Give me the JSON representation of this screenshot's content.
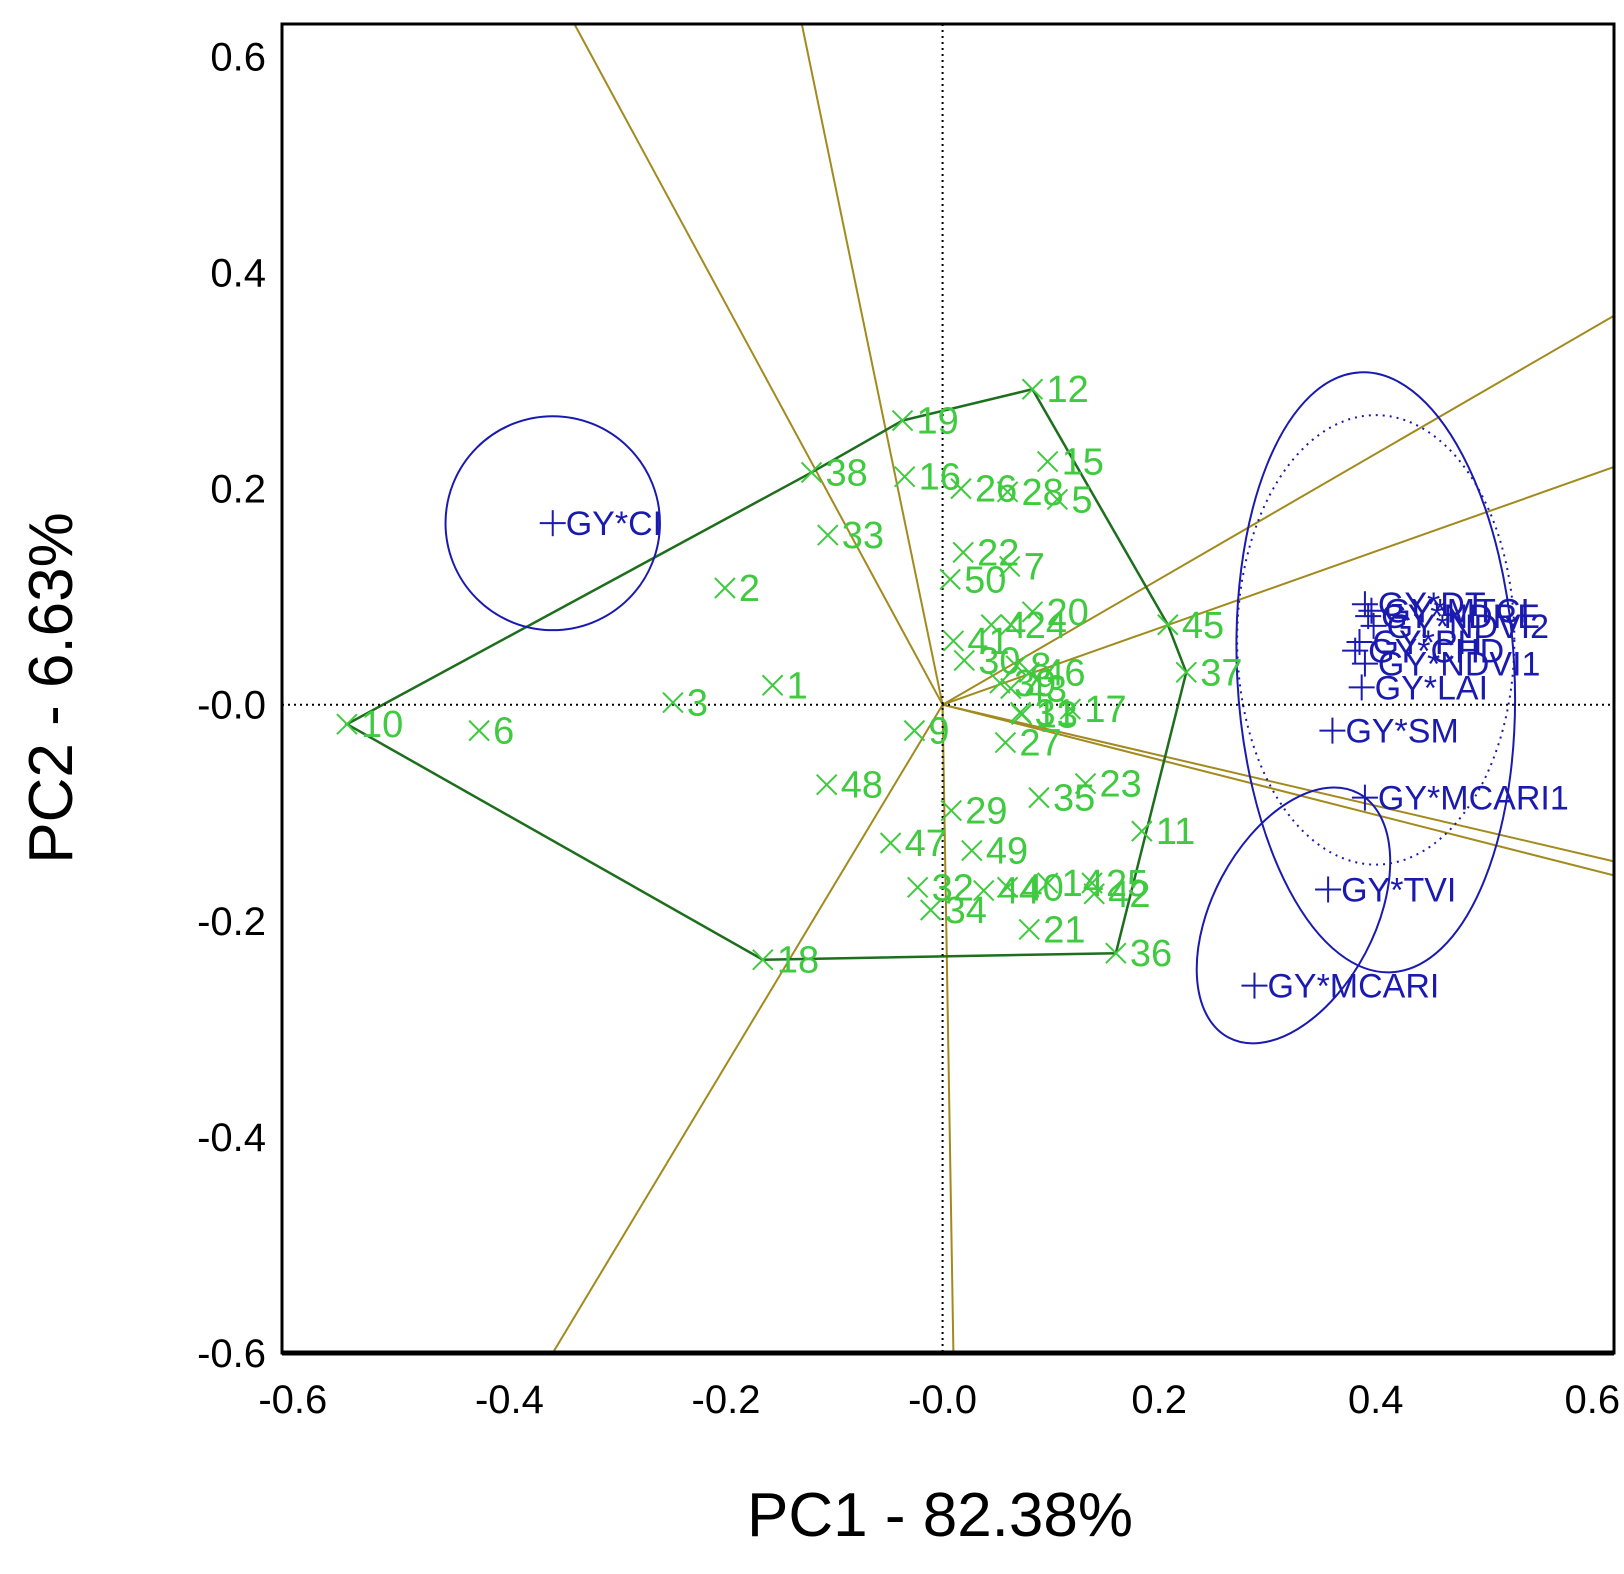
{
  "chart_data": {
    "type": "scatter",
    "title": "",
    "xlabel": "PC1 - 82.38%",
    "ylabel": "PC2 - 6.63%",
    "xlim": [
      -0.61,
      0.62
    ],
    "ylim": [
      -0.6,
      0.63
    ],
    "xticks": [
      -0.6,
      -0.4,
      -0.2,
      0.0,
      0.2,
      0.4,
      0.6
    ],
    "xtick_labels": [
      "-0.6",
      "-0.4",
      "-0.2",
      "-0.0",
      "0.2",
      "0.4",
      "0.6"
    ],
    "yticks": [
      0.6,
      0.4,
      0.2,
      0.0,
      -0.2,
      -0.4,
      -0.6
    ],
    "ytick_labels": [
      "0.6",
      "0.4",
      "0.2",
      "-0.0",
      "-0.2",
      "-0.4",
      "-0.6"
    ],
    "grid": false,
    "legend": "none",
    "reference_lines": {
      "x": 0.0,
      "y": 0.0,
      "style": "dotted"
    },
    "colors": {
      "genotype": "#3fca3f",
      "environment": "#1a1ab0",
      "polygon": "#1d6e1d",
      "sector_rays": "#a28a1e",
      "frame": "#000000"
    },
    "series": [
      {
        "name": "genotypes",
        "marker": "x",
        "points": [
          {
            "label": "1",
            "x": -0.157,
            "y": 0.018
          },
          {
            "label": "2",
            "x": -0.201,
            "y": 0.108
          },
          {
            "label": "3",
            "x": -0.249,
            "y": 0.002
          },
          {
            "label": "4",
            "x": 0.045,
            "y": 0.074
          },
          {
            "label": "5",
            "x": 0.106,
            "y": 0.19
          },
          {
            "label": "6",
            "x": -0.428,
            "y": -0.024
          },
          {
            "label": "7",
            "x": 0.062,
            "y": 0.128
          },
          {
            "label": "8",
            "x": 0.068,
            "y": 0.036
          },
          {
            "label": "9",
            "x": -0.026,
            "y": -0.024
          },
          {
            "label": "10",
            "x": -0.55,
            "y": -0.018
          },
          {
            "label": "11",
            "x": 0.184,
            "y": -0.117
          },
          {
            "label": "12",
            "x": 0.083,
            "y": 0.292
          },
          {
            "label": "13",
            "x": 0.073,
            "y": -0.009
          },
          {
            "label": "14",
            "x": 0.097,
            "y": -0.165
          },
          {
            "label": "15",
            "x": 0.097,
            "y": 0.225
          },
          {
            "label": "16",
            "x": -0.035,
            "y": 0.211
          },
          {
            "label": "17",
            "x": 0.118,
            "y": -0.004
          },
          {
            "label": "18",
            "x": -0.166,
            "y": -0.236
          },
          {
            "label": "19",
            "x": -0.037,
            "y": 0.263
          },
          {
            "label": "20",
            "x": 0.083,
            "y": 0.086
          },
          {
            "label": "21",
            "x": 0.08,
            "y": -0.208
          },
          {
            "label": "22",
            "x": 0.019,
            "y": 0.141
          },
          {
            "label": "23",
            "x": 0.132,
            "y": -0.073
          },
          {
            "label": "24",
            "x": 0.063,
            "y": 0.074
          },
          {
            "label": "25",
            "x": 0.138,
            "y": -0.165
          },
          {
            "label": "26",
            "x": 0.017,
            "y": 0.2
          },
          {
            "label": "27",
            "x": 0.058,
            "y": -0.035
          },
          {
            "label": "28",
            "x": 0.06,
            "y": 0.197
          },
          {
            "label": "29",
            "x": 0.008,
            "y": -0.098
          },
          {
            "label": "30",
            "x": 0.02,
            "y": 0.041
          },
          {
            "label": "31",
            "x": 0.072,
            "y": -0.007
          },
          {
            "label": "32",
            "x": -0.023,
            "y": -0.169
          },
          {
            "label": "33",
            "x": -0.106,
            "y": 0.157
          },
          {
            "label": "34",
            "x": -0.011,
            "y": -0.19
          },
          {
            "label": "35",
            "x": 0.089,
            "y": -0.086
          },
          {
            "label": "36",
            "x": 0.16,
            "y": -0.23
          },
          {
            "label": "37",
            "x": 0.225,
            "y": 0.03
          },
          {
            "label": "38",
            "x": -0.121,
            "y": 0.215
          },
          {
            "label": "39",
            "x": 0.053,
            "y": 0.02
          },
          {
            "label": "40",
            "x": 0.06,
            "y": -0.169
          },
          {
            "label": "41",
            "x": 0.01,
            "y": 0.059
          },
          {
            "label": "42",
            "x": 0.14,
            "y": -0.175
          },
          {
            "label": "43",
            "x": 0.063,
            "y": 0.015
          },
          {
            "label": "44",
            "x": 0.038,
            "y": -0.172
          },
          {
            "label": "45",
            "x": 0.208,
            "y": 0.074
          },
          {
            "label": "46",
            "x": 0.08,
            "y": 0.03
          },
          {
            "label": "47",
            "x": -0.048,
            "y": -0.128
          },
          {
            "label": "48",
            "x": -0.107,
            "y": -0.074
          },
          {
            "label": "49",
            "x": 0.027,
            "y": -0.135
          },
          {
            "label": "50",
            "x": 0.007,
            "y": 0.116
          }
        ]
      },
      {
        "name": "environments",
        "marker": "+",
        "points": [
          {
            "label": "GY*CI",
            "x": -0.36,
            "y": 0.168
          },
          {
            "label": "GY*DT",
            "x": 0.39,
            "y": 0.093
          },
          {
            "label": "GY*NDRE",
            "x": 0.393,
            "y": 0.082
          },
          {
            "label": "GY*MTCI",
            "x": 0.396,
            "y": 0.087
          },
          {
            "label": "GY*NDVI2",
            "x": 0.398,
            "y": 0.073
          },
          {
            "label": "GY*PH",
            "x": 0.385,
            "y": 0.058
          },
          {
            "label": "GY*CHD",
            "x": 0.381,
            "y": 0.05
          },
          {
            "label": "GY*NDVI1",
            "x": 0.39,
            "y": 0.038
          },
          {
            "label": "GY*LAI",
            "x": 0.387,
            "y": 0.016
          },
          {
            "label": "GY*SM",
            "x": 0.36,
            "y": -0.024
          },
          {
            "label": "GY*MCARI1",
            "x": 0.39,
            "y": -0.086
          },
          {
            "label": "GY*TVI",
            "x": 0.356,
            "y": -0.171
          },
          {
            "label": "GY*MCARI",
            "x": 0.288,
            "y": -0.26
          }
        ]
      }
    ],
    "polygon_vertices": [
      "10",
      "18",
      "36",
      "37",
      "45",
      "12",
      "19",
      "38"
    ],
    "sector_ray_endpoints": [
      {
        "x": -0.34,
        "y": 0.63
      },
      {
        "x": -0.13,
        "y": 0.63
      },
      {
        "x": 0.62,
        "y": 0.36
      },
      {
        "x": 0.62,
        "y": 0.22
      },
      {
        "x": 0.62,
        "y": -0.145
      },
      {
        "x": 0.62,
        "y": -0.158
      },
      {
        "x": 0.01,
        "y": -0.6
      },
      {
        "x": -0.36,
        "y": -0.6
      }
    ],
    "circles": [
      {
        "center": "GY*CI",
        "rx": 0.099,
        "ry": 0.099,
        "style": "solid"
      },
      {
        "cx": 0.4,
        "cy": 0.03,
        "rx": 0.128,
        "ry": 0.278,
        "rotate": -3,
        "style": "solid"
      },
      {
        "cx": 0.4,
        "cy": 0.06,
        "rx": 0.128,
        "ry": 0.208,
        "rotate": 0,
        "style": "dotted"
      },
      {
        "cx": 0.324,
        "cy": -0.195,
        "rx": 0.075,
        "ry": 0.128,
        "rotate": 28,
        "style": "solid"
      }
    ]
  }
}
